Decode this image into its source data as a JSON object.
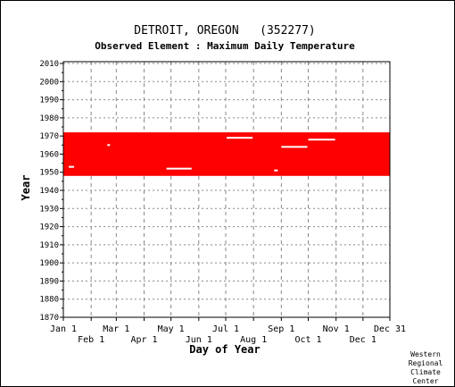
{
  "chart_data": {
    "type": "heatmap",
    "title": "DETROIT, OREGON   (352277)",
    "subtitle": "Observed Element : Maximum Daily Temperature",
    "xlabel": "Day of Year",
    "ylabel": "Year",
    "ylim": [
      1870,
      2011
    ],
    "xlim_days": [
      1,
      365
    ],
    "y_ticks": [
      1870,
      1880,
      1890,
      1900,
      1910,
      1920,
      1930,
      1940,
      1950,
      1960,
      1970,
      1980,
      1990,
      2000,
      2010
    ],
    "x_ticks_upper": [
      {
        "label": "Jan 1",
        "day": 1
      },
      {
        "label": "Mar 1",
        "day": 60
      },
      {
        "label": "May 1",
        "day": 121
      },
      {
        "label": "Jul 1",
        "day": 182
      },
      {
        "label": "Sep 1",
        "day": 244
      },
      {
        "label": "Nov 1",
        "day": 305
      },
      {
        "label": "Dec 31",
        "day": 365
      }
    ],
    "x_ticks_lower": [
      {
        "label": "Feb 1",
        "day": 32
      },
      {
        "label": "Apr 1",
        "day": 91
      },
      {
        "label": "Jun 1",
        "day": 152
      },
      {
        "label": "Aug 1",
        "day": 213
      },
      {
        "label": "Oct 1",
        "day": 274
      },
      {
        "label": "Dec 1",
        "day": 335
      }
    ],
    "grid": true,
    "data_color": "#ff0000",
    "record_start_year": 1948,
    "record_end_year": 1972,
    "data_gaps": [
      {
        "year": 1953,
        "day_start": 7,
        "day_end": 13
      },
      {
        "year": 1952,
        "day_start": 116,
        "day_end": 144
      },
      {
        "year": 1969,
        "day_start": 183,
        "day_end": 212
      },
      {
        "year": 1964,
        "day_start": 244,
        "day_end": 273
      },
      {
        "year": 1968,
        "day_start": 274,
        "day_end": 304
      },
      {
        "year": 1951,
        "day_start": 236,
        "day_end": 240
      },
      {
        "year": 1965,
        "day_start": 50,
        "day_end": 53
      }
    ]
  },
  "credit": [
    "Western",
    "Regional",
    "Climate",
    "Center"
  ]
}
